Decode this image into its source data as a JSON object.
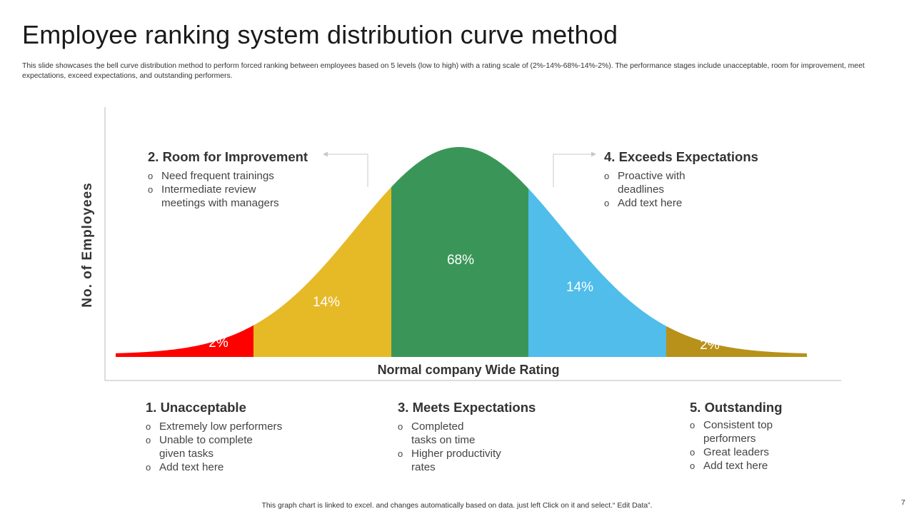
{
  "slide": {
    "title": "Employee ranking system distribution curve method",
    "subtitle": "This slide showcases the bell curve distribution method to perform forced ranking between employees based on 5 levels (low to high) with a rating scale of (2%-14%-68%-14%-2%). The performance stages include unacceptable, room for improvement, meet expectations, exceed expectations, and outstanding performers.",
    "footer": "This graph chart is linked to excel. and changes automatically based on data. just left Click on it and select.“ Edit Data”.",
    "page_number": "7"
  },
  "chart_data": {
    "type": "area",
    "ylabel": "No. of Employees",
    "xlabel": "Normal company Wide Rating",
    "grid": false,
    "categories": [
      "1",
      "2",
      "3",
      "4",
      "5"
    ],
    "values": [
      2,
      14,
      68,
      14,
      2
    ],
    "value_labels": [
      "2%",
      "14%",
      "68%",
      "14%",
      "2%"
    ],
    "colors": [
      "#ff0000",
      "#e6b927",
      "#3a9658",
      "#50bdea",
      "#b8911a"
    ]
  },
  "callouts": {
    "c1": {
      "heading": "1. Unacceptable",
      "items": [
        "Extremely low performers",
        "Unable to complete given tasks",
        "Add text here"
      ]
    },
    "c2": {
      "heading": "2. Room for Improvement",
      "items": [
        "Need frequent trainings",
        "Intermediate review meetings with managers"
      ]
    },
    "c3": {
      "heading": "3. Meets Expectations",
      "items": [
        "Completed tasks on time",
        "Higher productivity rates"
      ]
    },
    "c4": {
      "heading": "4. Exceeds Expectations",
      "items": [
        "Proactive with deadlines",
        "Add text here"
      ]
    },
    "c5": {
      "heading": "5. Outstanding",
      "items": [
        "Consistent top performers",
        "Great leaders",
        "Add text here"
      ]
    }
  }
}
